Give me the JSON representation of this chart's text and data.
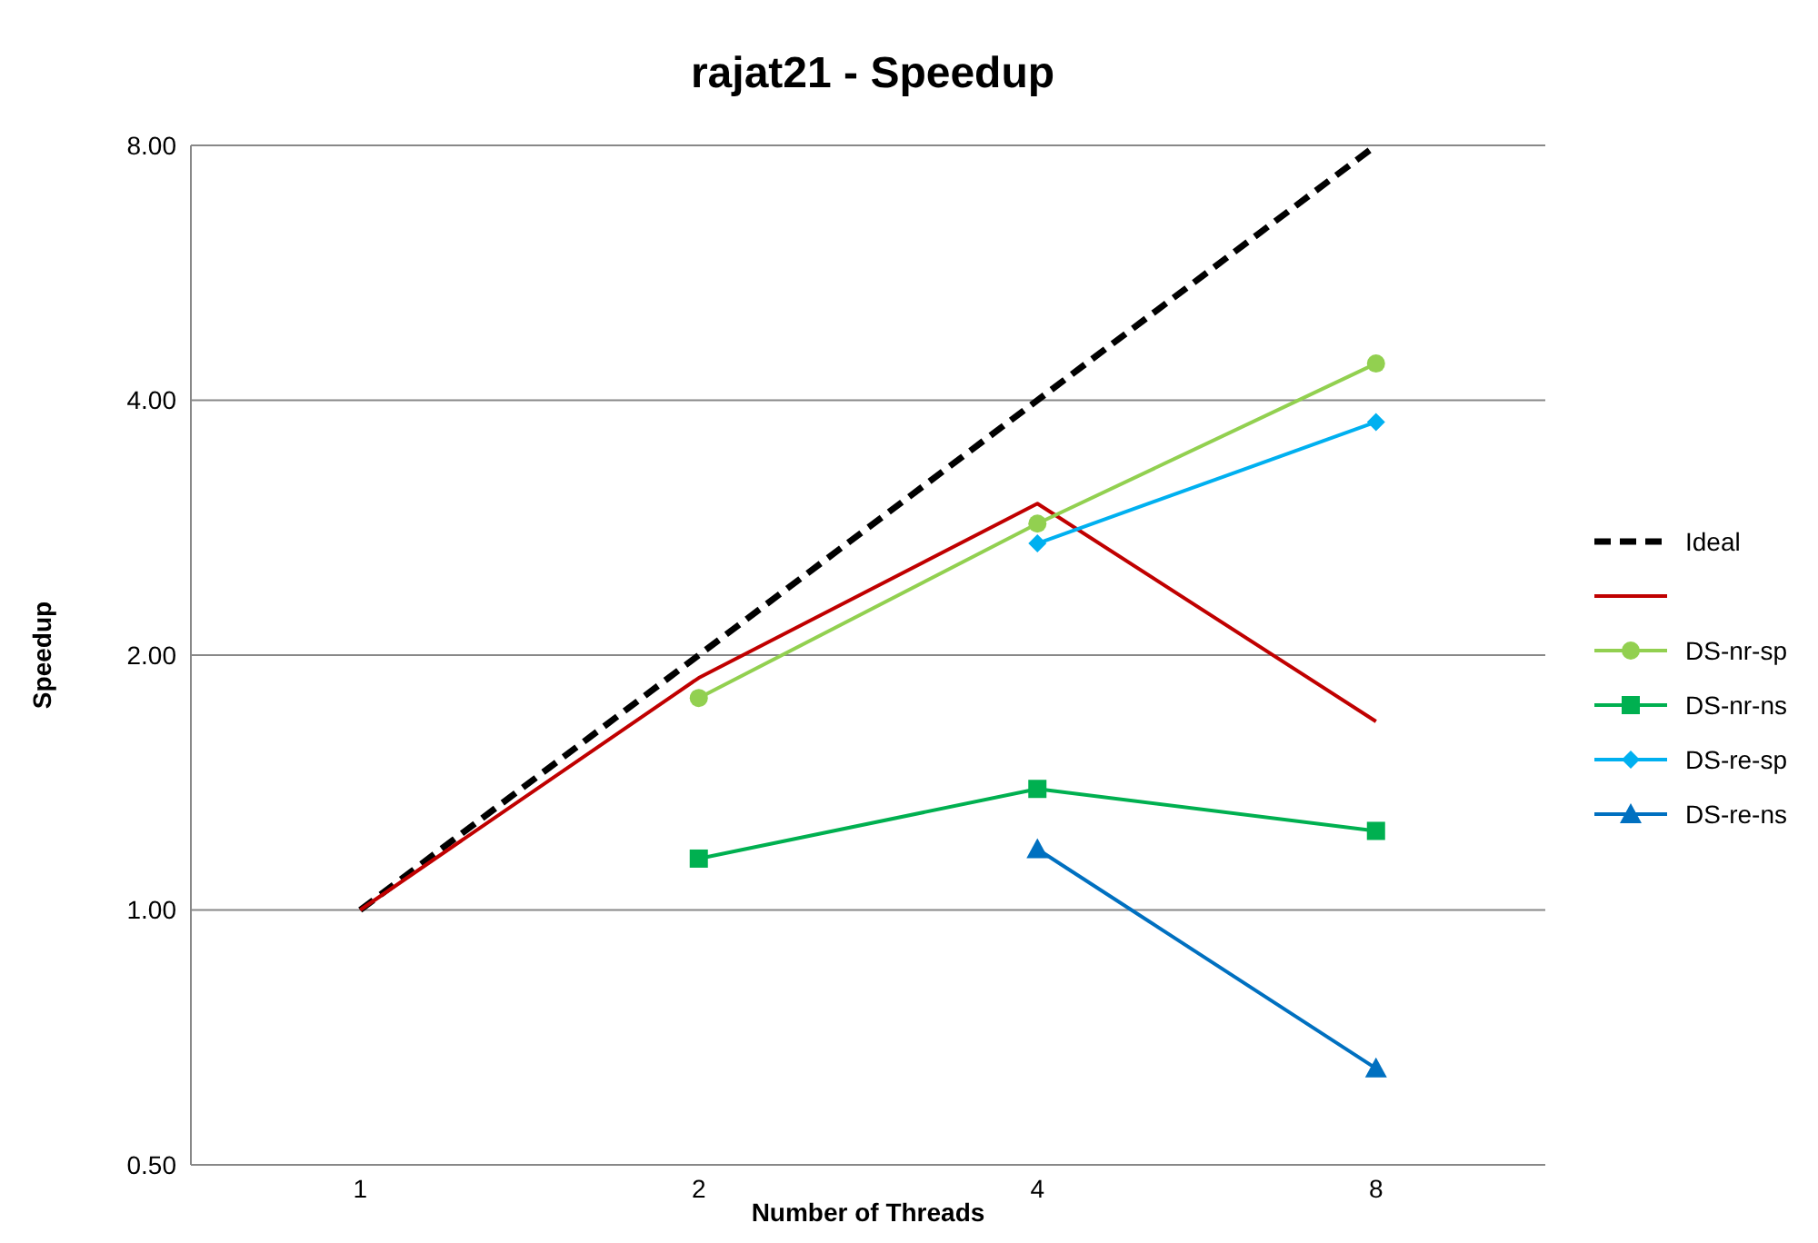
{
  "chart_data": {
    "type": "line",
    "title": "rajat21 - Speedup",
    "xlabel": "Number of Threads",
    "ylabel": "Speedup",
    "categories": [
      "1",
      "2",
      "4",
      "8"
    ],
    "log": "y",
    "ylim": [
      0.5,
      8
    ],
    "yticks": [
      {
        "value": 0.5,
        "label": "0.50"
      },
      {
        "value": 1,
        "label": "1.00"
      },
      {
        "value": 2,
        "label": "2.00"
      },
      {
        "value": 4,
        "label": "4.00"
      },
      {
        "value": 8,
        "label": "8.00"
      }
    ],
    "grid": "y",
    "legend": "right",
    "series": [
      {
        "name": "Ideal",
        "color": "#000000",
        "values": [
          1,
          2,
          4,
          8
        ],
        "line_style": "dashed",
        "marker": "none"
      },
      {
        "color": "#c00000",
        "values": [
          1,
          1.88,
          3.02,
          1.67
        ],
        "line_style": "solid",
        "marker": "none"
      },
      {
        "name": "DS-nr-sp",
        "color": "#92d050",
        "values": [
          null,
          1.78,
          2.86,
          4.42
        ],
        "line_style": "solid",
        "marker": "circle"
      },
      {
        "name": "DS-nr-ns",
        "color": "#00b050",
        "values": [
          null,
          1.15,
          1.39,
          1.24
        ],
        "line_style": "solid",
        "marker": "square"
      },
      {
        "name": "DS-re-sp",
        "color": "#00b0f0",
        "values": [
          null,
          null,
          2.71,
          3.77
        ],
        "line_style": "solid",
        "marker": "diamond"
      },
      {
        "name": "DS-re-ns",
        "color": "#0070c0",
        "values": [
          null,
          null,
          1.18,
          0.65
        ],
        "line_style": "solid",
        "marker": "triangle"
      }
    ]
  }
}
